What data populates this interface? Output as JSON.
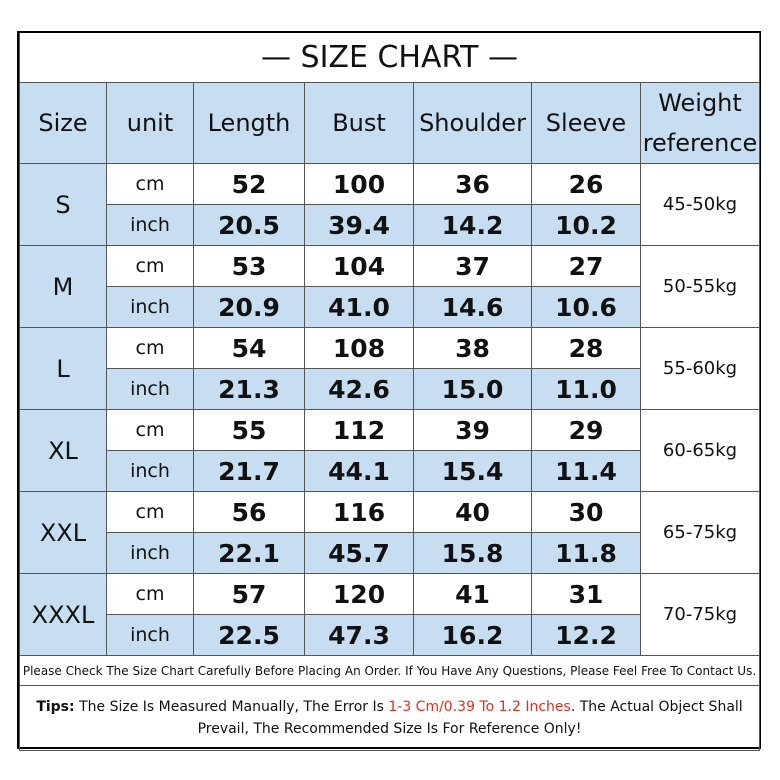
{
  "title": "— SIZE CHART —",
  "header": [
    "Size",
    "unit",
    "Length",
    "Bust",
    "Shoulder",
    "Sleeve",
    "Weight reference"
  ],
  "rows": [
    {
      "size": "S",
      "weight": "45-50kg",
      "cm": {
        "unit": "cm",
        "values": [
          "52",
          "100",
          "36",
          "26"
        ]
      },
      "inch": {
        "unit": "inch",
        "values": [
          "20.5",
          "39.4",
          "14.2",
          "10.2"
        ]
      }
    },
    {
      "size": "M",
      "weight": "50-55kg",
      "cm": {
        "unit": "cm",
        "values": [
          "53",
          "104",
          "37",
          "27"
        ]
      },
      "inch": {
        "unit": "inch",
        "values": [
          "20.9",
          "41.0",
          "14.6",
          "10.6"
        ]
      }
    },
    {
      "size": "L",
      "weight": "55-60kg",
      "cm": {
        "unit": "cm",
        "values": [
          "54",
          "108",
          "38",
          "28"
        ]
      },
      "inch": {
        "unit": "inch",
        "values": [
          "21.3",
          "42.6",
          "15.0",
          "11.0"
        ]
      }
    },
    {
      "size": "XL",
      "weight": "60-65kg",
      "cm": {
        "unit": "cm",
        "values": [
          "55",
          "112",
          "39",
          "29"
        ]
      },
      "inch": {
        "unit": "inch",
        "values": [
          "21.7",
          "44.1",
          "15.4",
          "11.4"
        ]
      }
    },
    {
      "size": "XXL",
      "weight": "65-75kg",
      "cm": {
        "unit": "cm",
        "values": [
          "56",
          "116",
          "40",
          "30"
        ]
      },
      "inch": {
        "unit": "inch",
        "values": [
          "22.1",
          "45.7",
          "15.8",
          "11.8"
        ]
      }
    },
    {
      "size": "XXXL",
      "weight": "70-75kg",
      "cm": {
        "unit": "cm",
        "values": [
          "57",
          "120",
          "41",
          "31"
        ]
      },
      "inch": {
        "unit": "inch",
        "values": [
          "22.5",
          "47.3",
          "16.2",
          "12.2"
        ]
      }
    }
  ],
  "note": "Please Check The Size Chart Carefully Before Placing An Order. If You Have Any Questions, Please Feel Free To Contact Us.",
  "tips": {
    "label": "Tips:",
    "text1": " The Size Is Measured Manually, The Error Is ",
    "highlight": "1-3 Cm/0.39 To 1.2 Inches",
    "text2": ". The Actual Object Shall Prevail, The Recommended Size Is For Reference Only!"
  }
}
